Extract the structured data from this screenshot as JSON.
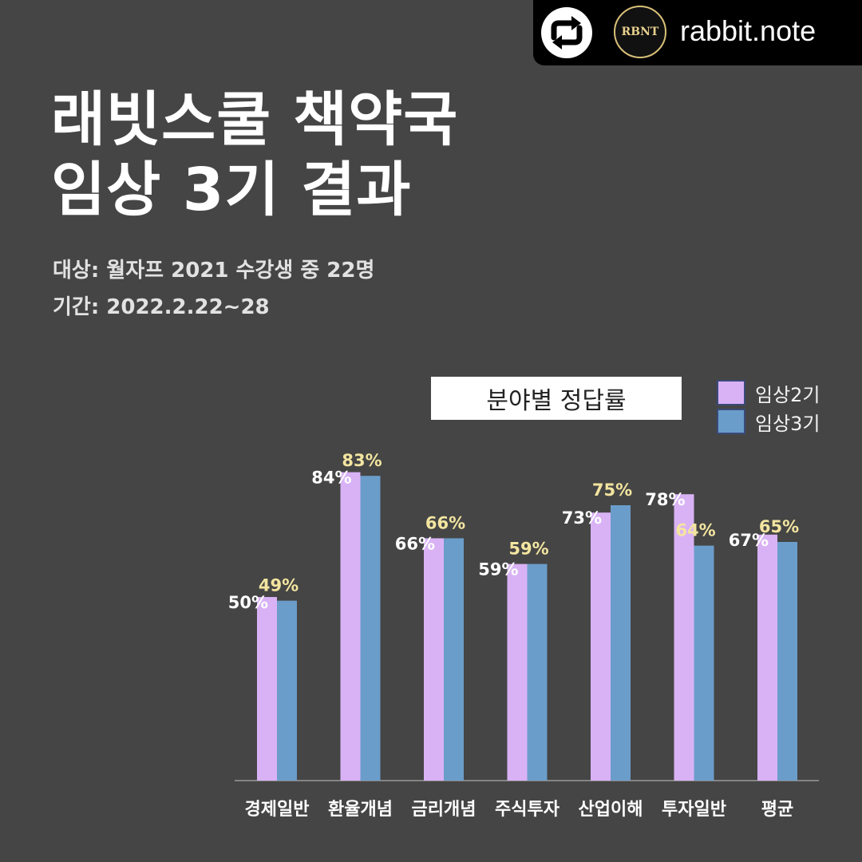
{
  "repost": {
    "username": "rabbit.note",
    "avatar_text": "RBNT"
  },
  "header": {
    "title_line1": "래빗스쿨 책약국",
    "title_line2": "임상 3기 결과",
    "meta_target": "대상: 월자프 2021 수강생 중 22명",
    "meta_period": "기간: 2022.2.22~28"
  },
  "colors": {
    "background": "#454545",
    "series1": "#d9b2f5",
    "series2": "#6b9dca",
    "label_series1": "#ffffff",
    "label_series2": "#f3e5a0"
  },
  "chart_data": {
    "type": "bar",
    "title": "분야별 정답률",
    "categories": [
      "경제일반",
      "환율개념",
      "금리개념",
      "주식투자",
      "산업이해",
      "투자일반",
      "평균"
    ],
    "series": [
      {
        "name": "임상2기",
        "values": [
          50,
          84,
          66,
          59,
          73,
          78,
          67
        ],
        "labels": [
          "50%",
          "84%",
          "66%",
          "59%",
          "73%",
          "78%",
          "67%"
        ]
      },
      {
        "name": "임상3기",
        "values": [
          49,
          83,
          66,
          59,
          75,
          64,
          65
        ],
        "labels": [
          "49%",
          "83%",
          "66%",
          "59%",
          "75%",
          "64%",
          "65%"
        ]
      }
    ],
    "xlabel": "",
    "ylabel": "",
    "legend": "top-right"
  }
}
